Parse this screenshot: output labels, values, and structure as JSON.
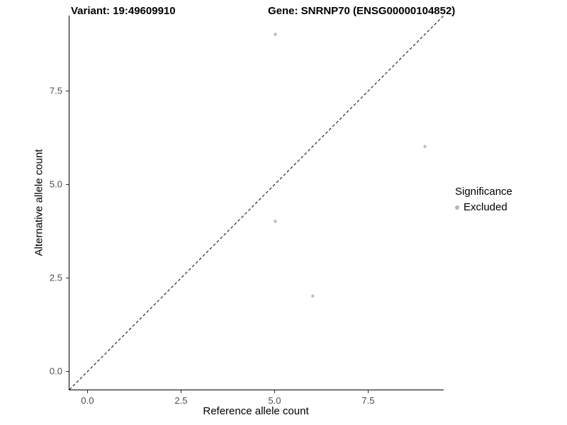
{
  "header": {
    "variant_title": "Variant: 19:49609910",
    "gene_title": "Gene: SNRNP70 (ENSG00000104852)"
  },
  "chart_data": {
    "type": "scatter",
    "xlabel": "Reference allele count",
    "ylabel": "Alternative allele count",
    "xlim": [
      -0.5,
      9.5
    ],
    "ylim": [
      -0.5,
      9.5
    ],
    "x_ticks": [
      0.0,
      2.5,
      5.0,
      7.5
    ],
    "y_ticks": [
      0.0,
      2.5,
      5.0,
      7.5
    ],
    "x_tick_labels": [
      "0.0",
      "2.5",
      "5.0",
      "7.5"
    ],
    "y_tick_labels": [
      "0.0",
      "2.5",
      "5.0",
      "7.5"
    ],
    "grid": false,
    "legend_position": "right",
    "series": [
      {
        "name": "Excluded",
        "color": "#bdbdbd",
        "points": [
          [
            5,
            9
          ],
          [
            9,
            6
          ],
          [
            5,
            4
          ],
          [
            6,
            2
          ]
        ]
      }
    ],
    "reference_line": {
      "style": "dashed",
      "from": [
        -0.5,
        -0.5
      ],
      "to": [
        9.5,
        9.5
      ],
      "color": "#000000"
    },
    "legend": {
      "title": "Significance",
      "entries": [
        {
          "label": "Excluded",
          "color": "#b5b5b5"
        }
      ]
    }
  }
}
